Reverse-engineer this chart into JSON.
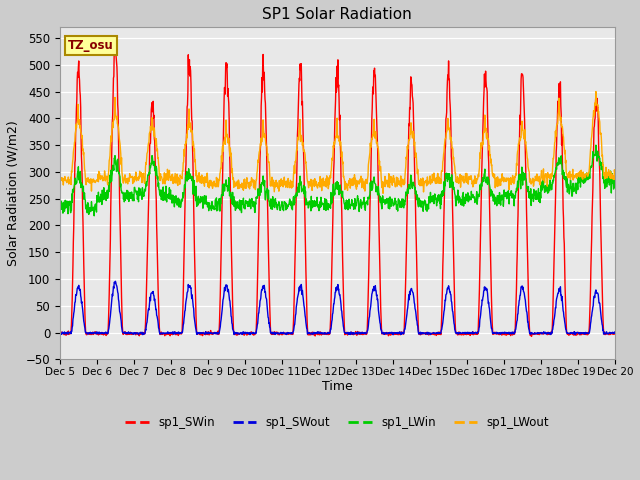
{
  "title": "SP1 Solar Radiation",
  "xlabel": "Time",
  "ylabel": "Solar Radiation (W/m2)",
  "ylim": [
    -50,
    570
  ],
  "yticks": [
    -50,
    0,
    50,
    100,
    150,
    200,
    250,
    300,
    350,
    400,
    450,
    500,
    550
  ],
  "colors": {
    "SWin": "#ff0000",
    "SWout": "#0000dd",
    "LWin": "#00cc00",
    "LWout": "#ffaa00"
  },
  "legend_labels": [
    "sp1_SWin",
    "sp1_SWout",
    "sp1_LWin",
    "sp1_LWout"
  ],
  "tz_label": "TZ_osu",
  "fig_bg": "#cccccc",
  "axes_bg": "#e8e8e8",
  "n_days": 15,
  "start_day": 5,
  "end_day": 20
}
